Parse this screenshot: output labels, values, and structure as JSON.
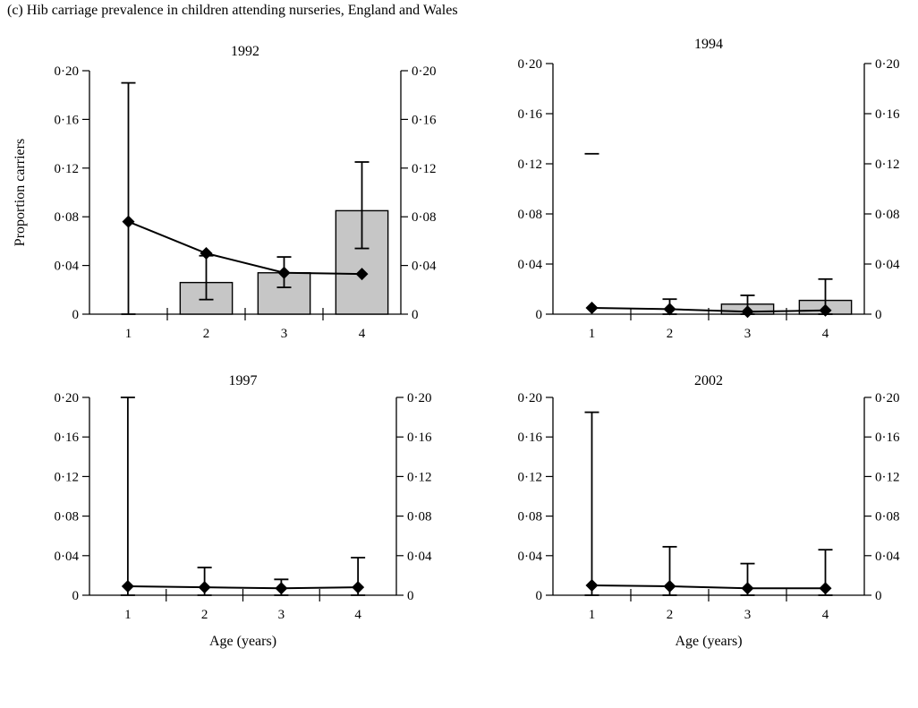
{
  "figure": {
    "caption": "(c) Hib carriage prevalence in children attending nurseries, England and Wales"
  },
  "chart_data": [
    {
      "type": "bar",
      "title": "1992",
      "xlabel": "",
      "ylabel": "Proportion carriers",
      "categories": [
        "1",
        "2",
        "3",
        "4"
      ],
      "ylim": [
        0,
        0.2
      ],
      "y_ticks": [
        "0",
        "0·04",
        "0·08",
        "0·12",
        "0·16",
        "0·20"
      ],
      "bars": {
        "values": [
          null,
          0.026,
          0.034,
          0.085
        ],
        "errors_low": [
          null,
          0.012,
          0.022,
          0.054
        ],
        "errors_high": [
          null,
          0.048,
          0.047,
          0.125
        ]
      },
      "line": {
        "values": [
          0.076,
          0.05,
          0.034,
          0.033
        ],
        "errors_low": [
          0.0,
          null,
          null,
          null
        ],
        "errors_high": [
          0.19,
          null,
          null,
          null
        ]
      },
      "color": "#c6c6c6"
    },
    {
      "type": "bar",
      "title": "1994",
      "xlabel": "",
      "ylabel": "",
      "categories": [
        "1",
        "2",
        "3",
        "4"
      ],
      "ylim": [
        0,
        0.2
      ],
      "y_ticks": [
        "0",
        "0·04",
        "0·08",
        "0·12",
        "0·16",
        "0·20"
      ],
      "bars": {
        "values": [
          null,
          null,
          0.008,
          0.011
        ],
        "errors_low": [
          null,
          null,
          0.0,
          0.0
        ],
        "errors_high": [
          null,
          null,
          0.015,
          0.028
        ]
      },
      "line": {
        "values": [
          0.005,
          0.004,
          0.002,
          0.003
        ],
        "errors_low": [
          null,
          0.0,
          null,
          null
        ],
        "errors_high": [
          0.128,
          0.012,
          null,
          null
        ]
      },
      "color": "#c6c6c6"
    },
    {
      "type": "line",
      "title": "1997",
      "xlabel": "Age (years)",
      "ylabel": "",
      "categories": [
        "1",
        "2",
        "3",
        "4"
      ],
      "ylim": [
        0,
        0.2
      ],
      "y_ticks": [
        "0",
        "0·04",
        "0·08",
        "0·12",
        "0·16",
        "0·20"
      ],
      "bars": {
        "values": [
          null,
          null,
          null,
          null
        ],
        "errors_low": [
          null,
          null,
          null,
          null
        ],
        "errors_high": [
          null,
          null,
          null,
          null
        ]
      },
      "line": {
        "values": [
          0.009,
          0.008,
          0.007,
          0.008
        ],
        "errors_low": [
          0.0,
          0.0,
          0.0,
          0.0
        ],
        "errors_high": [
          0.2,
          0.028,
          0.016,
          0.038
        ]
      },
      "color": "#c6c6c6"
    },
    {
      "type": "line",
      "title": "2002",
      "xlabel": "Age (years)",
      "ylabel": "",
      "categories": [
        "1",
        "2",
        "3",
        "4"
      ],
      "ylim": [
        0,
        0.2
      ],
      "y_ticks": [
        "0",
        "0·04",
        "0·08",
        "0·12",
        "0·16",
        "0·20"
      ],
      "bars": {
        "values": [
          null,
          null,
          null,
          null
        ],
        "errors_low": [
          null,
          null,
          null,
          null
        ],
        "errors_high": [
          null,
          null,
          null,
          null
        ]
      },
      "line": {
        "values": [
          0.01,
          0.009,
          0.007,
          0.007
        ],
        "errors_low": [
          0.0,
          0.0,
          0.0,
          0.0
        ],
        "errors_high": [
          0.185,
          0.049,
          0.032,
          0.046
        ]
      },
      "color": "#c6c6c6"
    }
  ]
}
